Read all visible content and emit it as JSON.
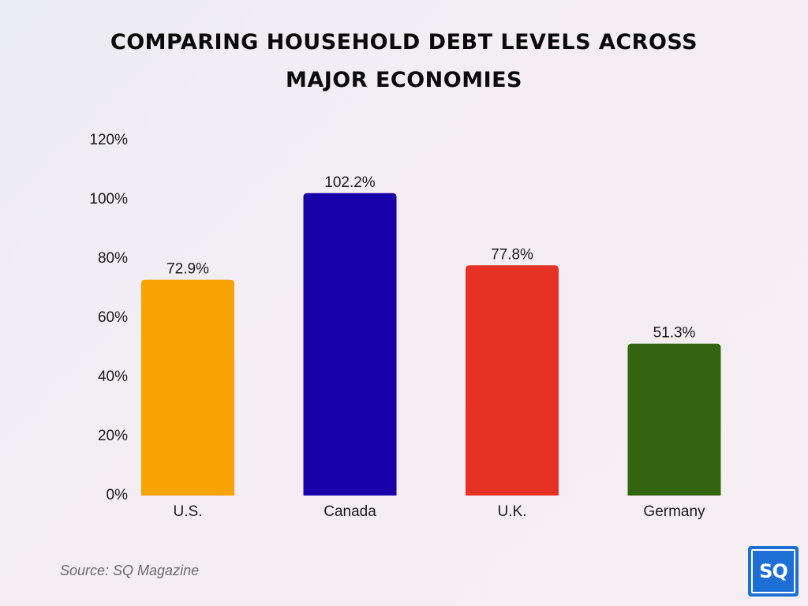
{
  "chart_data": {
    "type": "bar",
    "title": "COMPARING HOUSEHOLD DEBT LEVELS ACROSS MAJOR ECONOMIES",
    "title_lines": [
      "COMPARING HOUSEHOLD DEBT LEVELS ACROSS",
      "MAJOR ECONOMIES"
    ],
    "categories": [
      "U.S.",
      "Canada",
      "U.K.",
      "Germany"
    ],
    "values": [
      72.9,
      102.2,
      77.8,
      51.3
    ],
    "value_labels": [
      "72.9%",
      "102.2%",
      "77.8%",
      "51.3%"
    ],
    "colors": [
      "#f9a204",
      "#1a00a8",
      "#e53224",
      "#336510"
    ],
    "ylim": [
      0,
      120
    ],
    "yticks": [
      0,
      20,
      40,
      60,
      80,
      100,
      120
    ],
    "ytick_labels": [
      "0%",
      "20%",
      "40%",
      "60%",
      "80%",
      "100%",
      "120%"
    ],
    "xlabel": "",
    "ylabel": "",
    "grid": false
  },
  "source": "Source: SQ Magazine",
  "logo_text": "SQ"
}
